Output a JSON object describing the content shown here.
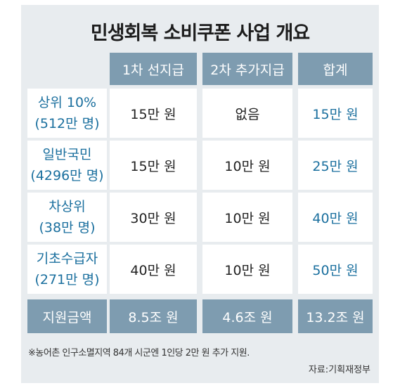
{
  "title": "민생회복 소비쿠폰 사업 개요",
  "columns": [
    "1차 선지급",
    "2차 추가지급",
    "합계"
  ],
  "rows": [
    {
      "label_line1": "상위 10%",
      "label_line2": "(512만 명)",
      "first": "15만 원",
      "second": "없음",
      "total": "15만 원"
    },
    {
      "label_line1": "일반국민",
      "label_line2": "(4296만 명)",
      "first": "15만 원",
      "second": "10만 원",
      "total": "25만 원"
    },
    {
      "label_line1": "차상위",
      "label_line2": "(38만 명)",
      "first": "30만 원",
      "second": "10만 원",
      "total": "40만 원"
    },
    {
      "label_line1": "기초수급자",
      "label_line2": "(271만 명)",
      "first": "40만 원",
      "second": "10만 원",
      "total": "50만 원"
    }
  ],
  "footer": {
    "label": "지원금액",
    "first": "8.5조 원",
    "second": "4.6조 원",
    "total": "13.2조 원"
  },
  "note": "※농어촌 인구소멸지역 84개 시군엔 1인당 2만 원 추가 지원.",
  "source": "자료:기획재정부",
  "colors": {
    "header_bg": "#7e9cb0",
    "accent_text": "#1a6f9e",
    "card_bg": "#e8ecef"
  }
}
